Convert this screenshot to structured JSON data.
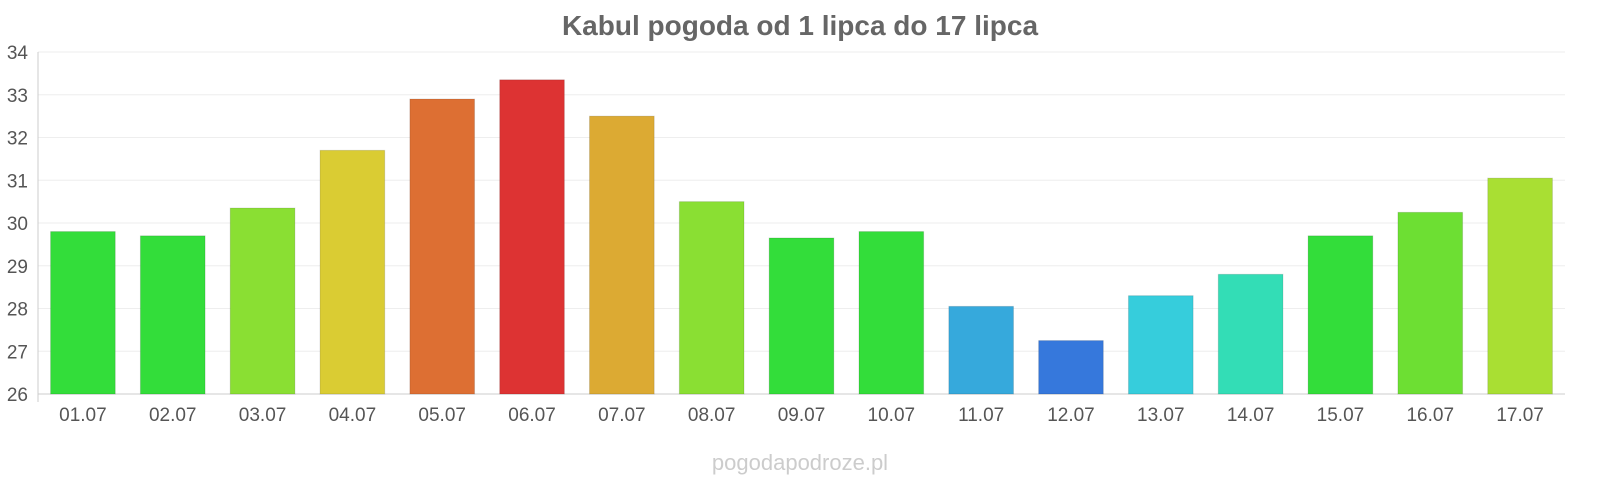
{
  "title": "Kabul pogoda od 1 lipca do 17 lipca",
  "watermark": "pogodapodroze.pl",
  "chart_data": {
    "type": "bar",
    "title": "Kabul pogoda od 1 lipca do 17 lipca",
    "xlabel": "",
    "ylabel": "",
    "ylim": [
      26,
      34
    ],
    "yticks": [
      26,
      27,
      28,
      29,
      30,
      31,
      32,
      33,
      34
    ],
    "grid": true,
    "categories": [
      "01.07",
      "02.07",
      "03.07",
      "04.07",
      "05.07",
      "06.07",
      "07.07",
      "08.07",
      "09.07",
      "10.07",
      "11.07",
      "12.07",
      "13.07",
      "14.07",
      "15.07",
      "16.07",
      "17.07"
    ],
    "values": [
      29.8,
      29.7,
      30.35,
      31.7,
      32.9,
      33.35,
      32.5,
      30.5,
      29.65,
      29.8,
      28.05,
      27.25,
      28.3,
      28.8,
      29.7,
      30.25,
      31.05
    ],
    "colors": [
      "#33dd3a",
      "#33dd3a",
      "#8adf33",
      "#dacc33",
      "#dd6f33",
      "#dd3333",
      "#dcaa33",
      "#8adf33",
      "#33dd3a",
      "#33dd3a",
      "#36a9dc",
      "#3678dc",
      "#36cddc",
      "#33ddb6",
      "#33dd3a",
      "#6ddf33",
      "#a9df33"
    ]
  }
}
